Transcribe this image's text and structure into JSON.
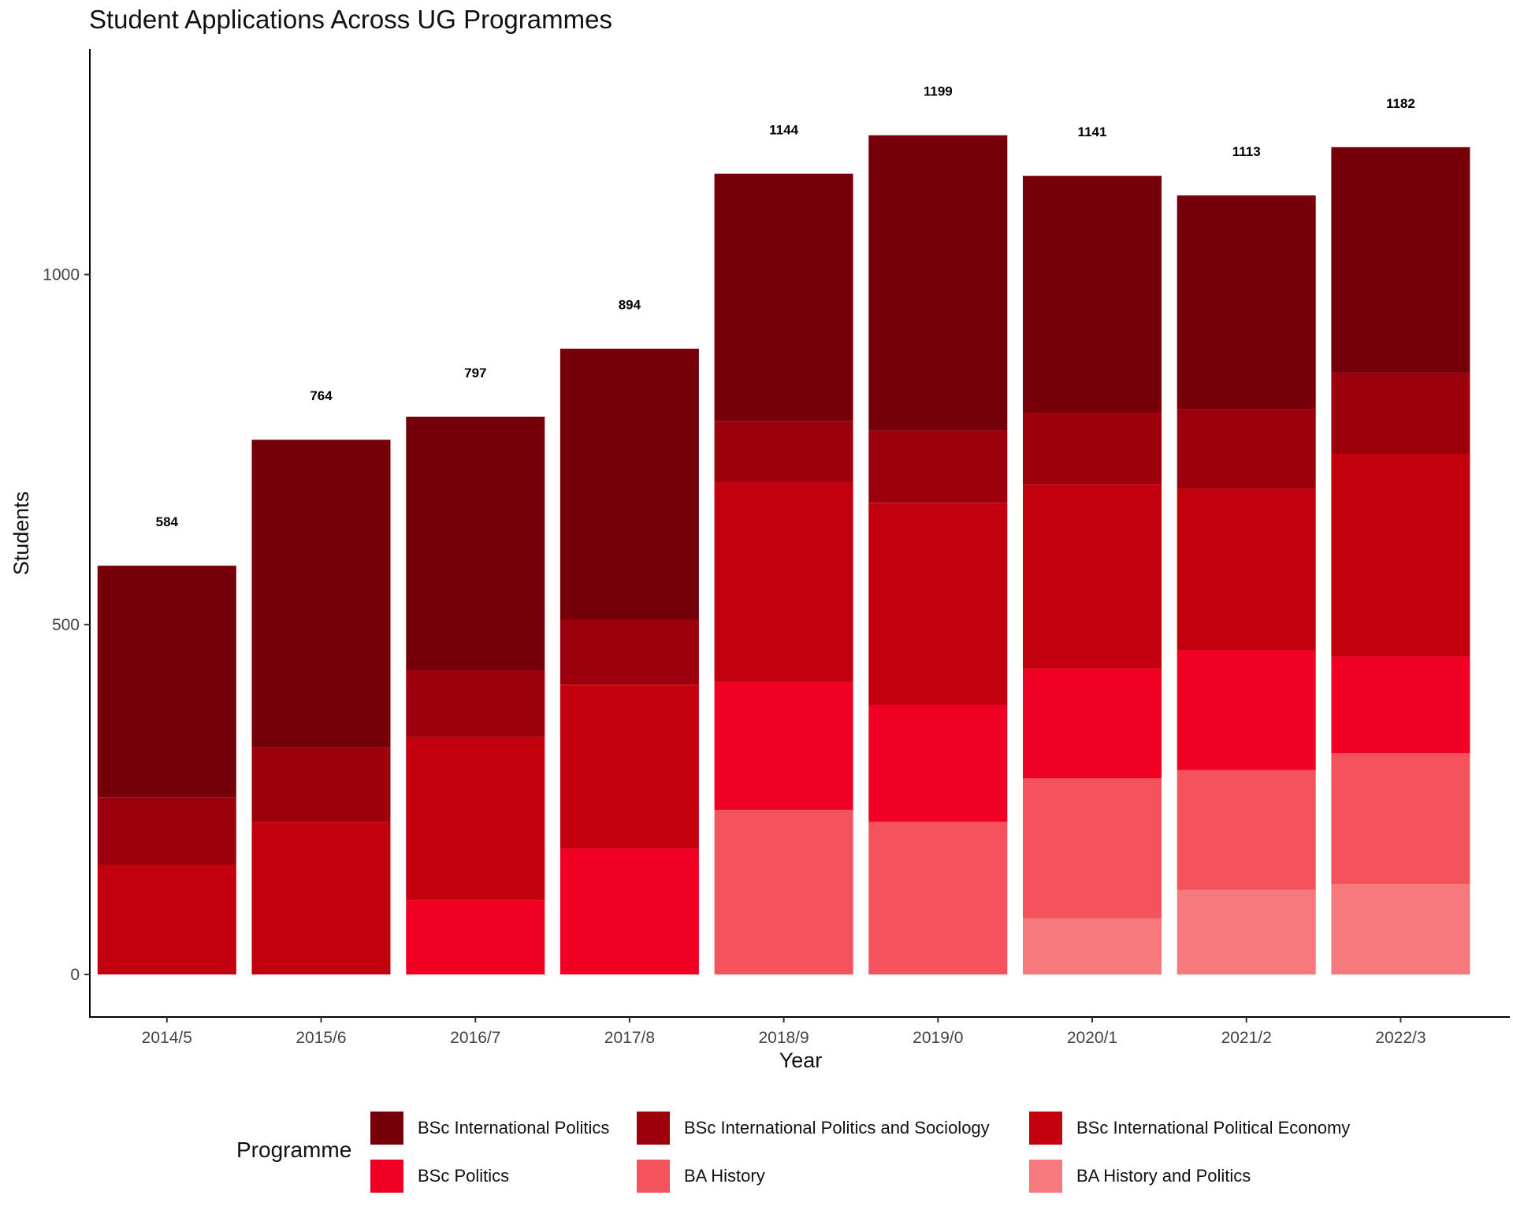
{
  "chart_data": {
    "type": "bar",
    "stacked": true,
    "title": "Student Applications Across UG Programmes",
    "xlabel": "Year",
    "ylabel": "Students",
    "ylim": [
      0,
      1300
    ],
    "yticks": [
      0,
      500,
      1000
    ],
    "grid": false,
    "legend_title": "Programme",
    "legend_position": "bottom",
    "categories": [
      "2014/5",
      "2015/6",
      "2016/7",
      "2017/8",
      "2018/9",
      "2019/0",
      "2020/1",
      "2021/2",
      "2022/3"
    ],
    "totals": [
      584,
      764,
      797,
      894,
      1144,
      1199,
      1141,
      1113,
      1182
    ],
    "series": [
      {
        "name": "BSc International Politics",
        "color": "#750009",
        "values": [
          331,
          439,
          362,
          387,
          353,
          422,
          338,
          305,
          323
        ]
      },
      {
        "name": "BSc International Politics and Sociology",
        "color": "#9b000c",
        "values": [
          96,
          107,
          96,
          93,
          87,
          103,
          103,
          114,
          115
        ]
      },
      {
        "name": "BSc International Political Economy",
        "color": "#c2000e",
        "values": [
          157,
          218,
          233,
          234,
          286,
          289,
          263,
          231,
          290
        ]
      },
      {
        "name": "BSc Politics",
        "color": "#f00023",
        "values": [
          0,
          0,
          106,
          180,
          183,
          167,
          157,
          171,
          138
        ]
      },
      {
        "name": "BA History",
        "color": "#f4535e",
        "values": [
          0,
          0,
          0,
          0,
          235,
          218,
          200,
          171,
          187
        ]
      },
      {
        "name": "BA History and Politics",
        "color": "#f6797d",
        "values": [
          0,
          0,
          0,
          0,
          0,
          0,
          80,
          121,
          129
        ]
      }
    ]
  }
}
